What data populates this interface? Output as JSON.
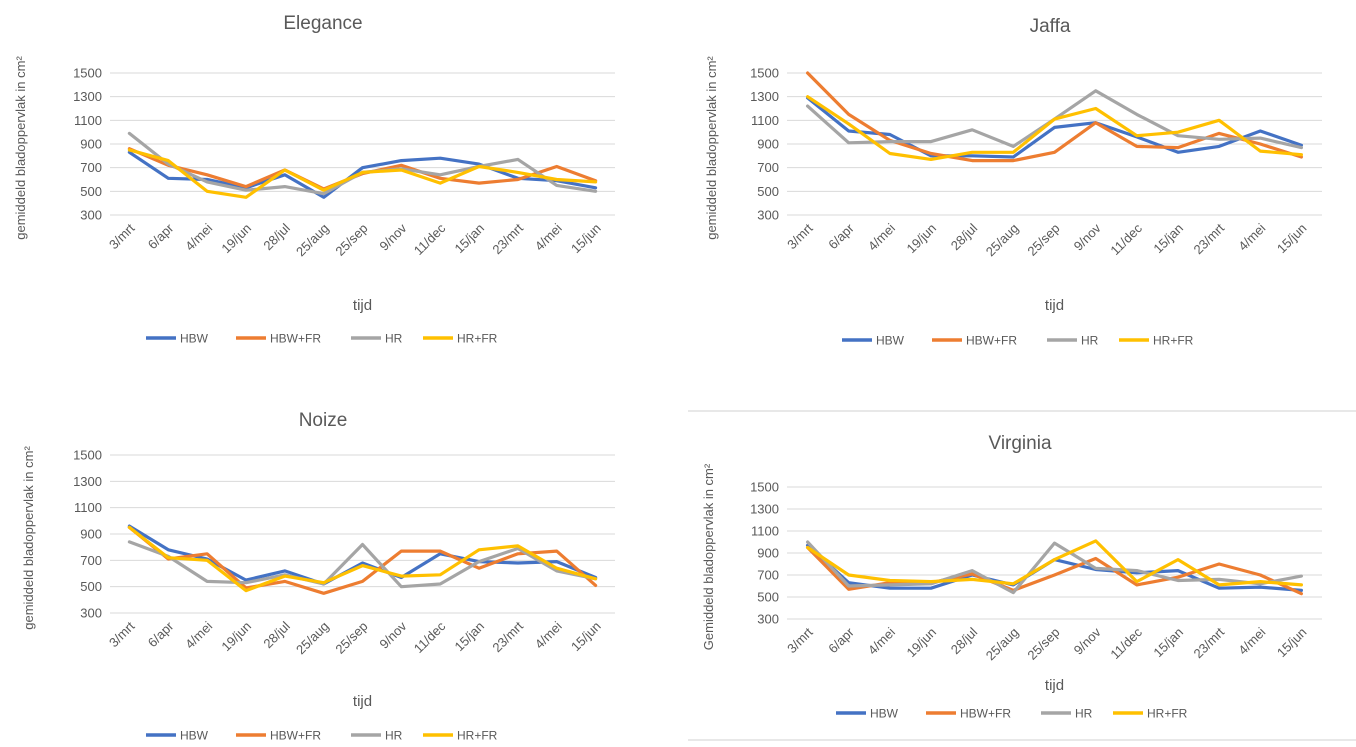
{
  "colors": {
    "HBW": "#4472c4",
    "HBW+FR": "#ed7d31",
    "HR": "#a5a5a5",
    "HR+FR": "#ffc000",
    "grid": "#d9d9d9",
    "text": "#595959"
  },
  "chart_data": [
    {
      "type": "line",
      "title": "Elegance",
      "xlabel": "tijd",
      "ylabel": "gemiddeld bladoppervlak in cm²",
      "yticks": [
        300,
        500,
        700,
        900,
        1100,
        1300,
        1500
      ],
      "ylim": [
        300,
        1500
      ],
      "grid": true,
      "legend": "bottom",
      "categories": [
        "3/mrt",
        "6/apr",
        "4/mei",
        "19/jun",
        "28/jul",
        "25/aug",
        "25/sep",
        "9/nov",
        "11/dec",
        "15/jan",
        "23/mrt",
        "4/mei",
        "15/jun"
      ],
      "series": [
        {
          "name": "HBW",
          "values": [
            830,
            610,
            600,
            530,
            640,
            450,
            700,
            760,
            780,
            730,
            610,
            590,
            530
          ]
        },
        {
          "name": "HBW+FR",
          "values": [
            860,
            720,
            640,
            540,
            680,
            520,
            650,
            720,
            610,
            570,
            600,
            710,
            590
          ]
        },
        {
          "name": "HR",
          "values": [
            990,
            730,
            580,
            510,
            540,
            480,
            660,
            690,
            640,
            710,
            770,
            550,
            500
          ]
        },
        {
          "name": "HR+FR",
          "values": [
            850,
            760,
            500,
            450,
            680,
            510,
            660,
            680,
            570,
            710,
            660,
            600,
            580
          ]
        }
      ]
    },
    {
      "type": "line",
      "title": "Jaffa",
      "xlabel": "tijd",
      "ylabel": "gemiddeld bladoppervlak in cm²",
      "yticks": [
        300,
        500,
        700,
        900,
        1100,
        1300,
        1500
      ],
      "ylim": [
        300,
        1500
      ],
      "grid": true,
      "legend": "bottom",
      "categories": [
        "3/mrt",
        "6/apr",
        "4/mei",
        "19/jun",
        "28/jul",
        "25/aug",
        "25/sep",
        "9/nov",
        "11/dec",
        "15/jan",
        "23/mrt",
        "4/mei",
        "15/jun"
      ],
      "series": [
        {
          "name": "HBW",
          "values": [
            1290,
            1010,
            980,
            800,
            800,
            790,
            1040,
            1080,
            960,
            830,
            880,
            1010,
            890
          ]
        },
        {
          "name": "HBW+FR",
          "values": [
            1500,
            1150,
            930,
            820,
            760,
            760,
            830,
            1080,
            880,
            870,
            990,
            900,
            790
          ]
        },
        {
          "name": "HR",
          "values": [
            1220,
            910,
            920,
            920,
            1020,
            880,
            1110,
            1350,
            1150,
            970,
            940,
            950,
            870
          ]
        },
        {
          "name": "HR+FR",
          "values": [
            1300,
            1070,
            820,
            770,
            830,
            830,
            1110,
            1200,
            970,
            1000,
            1100,
            840,
            810
          ]
        }
      ]
    },
    {
      "type": "line",
      "title": "Noize",
      "xlabel": "tijd",
      "ylabel": "gemiddeld bladoppervlak in cm²",
      "yticks": [
        300,
        500,
        700,
        900,
        1100,
        1300,
        1500
      ],
      "ylim": [
        300,
        1500
      ],
      "grid": true,
      "legend": "bottom",
      "categories": [
        "3/mrt",
        "6/apr",
        "4/mei",
        "19/jun",
        "28/jul",
        "25/aug",
        "25/sep",
        "9/nov",
        "11/dec",
        "15/jan",
        "23/mrt",
        "4/mei",
        "15/jun"
      ],
      "series": [
        {
          "name": "HBW",
          "values": [
            960,
            780,
            710,
            550,
            620,
            520,
            680,
            570,
            750,
            690,
            680,
            690,
            570
          ]
        },
        {
          "name": "HBW+FR",
          "values": [
            950,
            710,
            750,
            490,
            540,
            450,
            540,
            770,
            770,
            640,
            750,
            770,
            510
          ]
        },
        {
          "name": "HR",
          "values": [
            840,
            730,
            540,
            530,
            590,
            520,
            820,
            500,
            520,
            690,
            790,
            620,
            560
          ]
        },
        {
          "name": "HR+FR",
          "values": [
            950,
            720,
            700,
            470,
            580,
            530,
            660,
            580,
            590,
            780,
            810,
            640,
            560
          ]
        }
      ]
    },
    {
      "type": "line",
      "title": "Virginia",
      "xlabel": "tijd",
      "ylabel": "Gemiddeld bladoppervlak in cm²",
      "yticks": [
        300,
        500,
        700,
        900,
        1100,
        1300,
        1500
      ],
      "ylim": [
        300,
        1500
      ],
      "grid": true,
      "legend": "bottom",
      "categories": [
        "3/mrt",
        "6/apr",
        "4/mei",
        "19/jun",
        "28/jul",
        "25/aug",
        "25/sep",
        "9/nov",
        "11/dec",
        "15/jan",
        "23/mrt",
        "4/mei",
        "15/jun"
      ],
      "series": [
        {
          "name": "HBW",
          "values": [
            970,
            630,
            580,
            580,
            700,
            610,
            840,
            750,
            720,
            740,
            580,
            590,
            560
          ]
        },
        {
          "name": "HBW+FR",
          "values": [
            950,
            570,
            630,
            630,
            710,
            560,
            700,
            850,
            610,
            680,
            800,
            700,
            530
          ]
        },
        {
          "name": "HR",
          "values": [
            1000,
            600,
            610,
            620,
            740,
            540,
            990,
            760,
            740,
            650,
            660,
            620,
            690
          ]
        },
        {
          "name": "HR+FR",
          "values": [
            950,
            700,
            650,
            640,
            660,
            620,
            840,
            1010,
            640,
            840,
            610,
            640,
            610
          ]
        }
      ]
    }
  ]
}
